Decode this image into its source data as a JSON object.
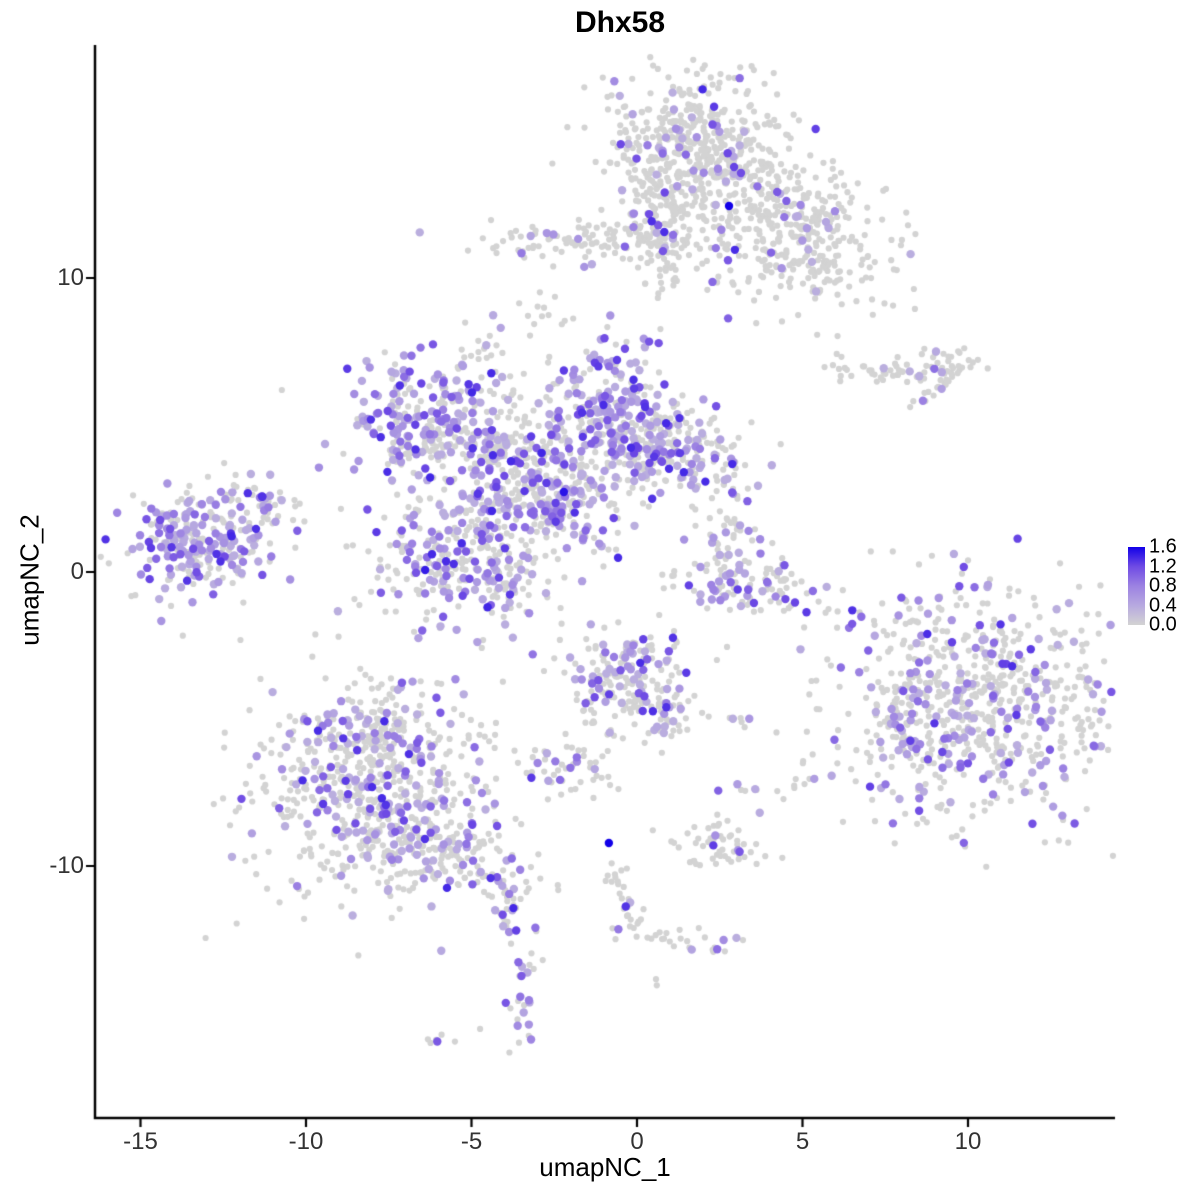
{
  "title": "Dhx58",
  "chart_data": {
    "type": "scatter",
    "title": "Dhx58",
    "xlabel": "umapNC_1",
    "ylabel": "umapNC_2",
    "x_ticks": [
      "-15",
      "-10",
      "-5",
      "0",
      "5",
      "10"
    ],
    "x_tick_values": [
      -15,
      -10,
      -5,
      0,
      5,
      10
    ],
    "y_ticks": [
      "10",
      "0",
      "-10"
    ],
    "y_tick_values": [
      10,
      0,
      -10
    ],
    "xlim": [
      -16.4,
      14.4
    ],
    "ylim": [
      -18.6,
      17.9
    ],
    "grid": false,
    "legend": {
      "position": "right",
      "labels": [
        "1.6",
        "1.2",
        "0.8",
        "0.4",
        "0.0"
      ],
      "values": [
        1.6,
        1.2,
        0.8,
        0.4,
        0.0
      ],
      "min": 0.0,
      "max": 1.6
    },
    "point_color_scale": [
      [
        0.0,
        "#D3D3D3"
      ],
      [
        0.4,
        "#B7A9E0"
      ],
      [
        0.8,
        "#9C82E2"
      ],
      [
        1.2,
        "#6F4BE4"
      ],
      [
        1.6,
        "#1200E8"
      ]
    ],
    "background_point_color": "#D3D3D3",
    "clusters": [
      {
        "name": "top-cap",
        "cx": 1.75,
        "cy": 14.35,
        "sx": 1.45,
        "sy": 1.3,
        "rot": 0,
        "n": 520,
        "frac": 0.08
      },
      {
        "name": "top-stem",
        "cx": 0.76,
        "cy": 11.63,
        "sx": 0.5,
        "sy": 1.1,
        "rot": 0,
        "n": 110,
        "frac": 0.08
      },
      {
        "name": "top-right-wing",
        "cx": 4.77,
        "cy": 11.29,
        "sx": 1.6,
        "sy": 1.25,
        "rot": -25,
        "n": 360,
        "frac": 0.08
      },
      {
        "name": "top-left-arm",
        "cx": -1.72,
        "cy": 11.29,
        "sx": 1.7,
        "sy": 0.35,
        "rot": 0,
        "n": 100,
        "frac": 0.12
      },
      {
        "name": "blob-upper-mid",
        "cx": -2.78,
        "cy": 8.81,
        "sx": 0.3,
        "sy": 0.35,
        "rot": 0,
        "n": 13,
        "frac": 0.3
      },
      {
        "name": "stream-a",
        "cx": -4.44,
        "cy": 7.31,
        "sx": 0.36,
        "sy": 0.55,
        "rot": 0,
        "n": 18,
        "frac": 0.3
      },
      {
        "name": "stream-b",
        "cx": -4.11,
        "cy": 6.19,
        "sx": 0.22,
        "sy": 0.55,
        "rot": 0,
        "n": 13,
        "frac": 0.15
      },
      {
        "name": "central-upper-left-wing",
        "cx": -6.4,
        "cy": 5.44,
        "sx": 1.3,
        "sy": 1.0,
        "rot": 25,
        "n": 210,
        "frac": 0.45
      },
      {
        "name": "central-left-arm",
        "cx": -4.65,
        "cy": 4.25,
        "sx": 1.15,
        "sy": 0.58,
        "rot": -15,
        "n": 120,
        "frac": 0.3
      },
      {
        "name": "central-bridge",
        "cx": -3.23,
        "cy": 3.47,
        "sx": 0.88,
        "sy": 0.75,
        "rot": 0,
        "n": 100,
        "frac": 0.35
      },
      {
        "name": "central-top-right-lobe",
        "cx": -0.82,
        "cy": 5.17,
        "sx": 1.02,
        "sy": 1.38,
        "rot": 0,
        "n": 320,
        "frac": 0.5
      },
      {
        "name": "central-right-arm",
        "cx": 1.3,
        "cy": 4.15,
        "sx": 1.18,
        "sy": 0.82,
        "rot": -10,
        "n": 190,
        "frac": 0.35
      },
      {
        "name": "central-neck",
        "cx": -2.84,
        "cy": 2.45,
        "sx": 0.74,
        "sy": 0.65,
        "rot": 0,
        "n": 85,
        "frac": 0.35
      },
      {
        "name": "central-lower-left-lobe",
        "cx": -5.05,
        "cy": 0.58,
        "sx": 1.45,
        "sy": 1.3,
        "rot": 0,
        "n": 370,
        "frac": 0.4
      },
      {
        "name": "central-diag-streak",
        "cx": -2.11,
        "cy": 1.7,
        "sx": 0.72,
        "sy": 0.28,
        "rot": -40,
        "n": 38,
        "frac": 0.5
      },
      {
        "name": "left-cluster",
        "cx": -13.05,
        "cy": 1.09,
        "sx": 1.22,
        "sy": 0.92,
        "rot": 0,
        "n": 270,
        "frac": 0.52
      },
      {
        "name": "left-cluster-tip",
        "cx": -11.33,
        "cy": 2.35,
        "sx": 0.5,
        "sy": 0.25,
        "rot": -20,
        "n": 28,
        "frac": 0.4
      },
      {
        "name": "right-chain",
        "cx": 7.49,
        "cy": 6.87,
        "sx": 0.82,
        "sy": 0.22,
        "rot": 0,
        "n": 38,
        "frac": 0.06
      },
      {
        "name": "right-chain-blob",
        "cx": 9.31,
        "cy": 7.07,
        "sx": 0.52,
        "sy": 0.35,
        "rot": 0,
        "n": 42,
        "frac": 0.04
      },
      {
        "name": "right-diag",
        "cx": 8.94,
        "cy": 6.09,
        "sx": 0.36,
        "sy": 0.16,
        "rot": 25,
        "n": 11,
        "frac": 0.15
      },
      {
        "name": "crescent-upper",
        "cx": 2.87,
        "cy": 1.09,
        "sx": 0.5,
        "sy": 0.75,
        "rot": 0,
        "n": 50,
        "frac": 0.3
      },
      {
        "name": "crescent",
        "cx": 3.26,
        "cy": -0.65,
        "sx": 1.3,
        "sy": 0.4,
        "rot": -8,
        "n": 85,
        "frac": 0.3
      },
      {
        "name": "crescent-hook",
        "cx": 4.41,
        "cy": 0.03,
        "sx": 0.28,
        "sy": 0.3,
        "rot": 0,
        "n": 14,
        "frac": 0.2
      },
      {
        "name": "right-big",
        "cx": 10.51,
        "cy": -4.35,
        "sx": 2.2,
        "sy": 2.1,
        "rot": 0,
        "n": 680,
        "frac": 0.26
      },
      {
        "name": "right-big-protrusion",
        "cx": 7.95,
        "cy": -5.2,
        "sx": 0.42,
        "sy": 0.98,
        "rot": 0,
        "n": 42,
        "frac": 0.5
      },
      {
        "name": "right-big-sparse",
        "cx": 8.55,
        "cy": -2.48,
        "sx": 0.72,
        "sy": 0.82,
        "rot": 0,
        "n": 15,
        "frac": 0.05
      },
      {
        "name": "bottom-left-main",
        "cx": -7.92,
        "cy": -7.76,
        "sx": 1.9,
        "sy": 1.8,
        "rot": 0,
        "n": 580,
        "frac": 0.24
      },
      {
        "name": "bottom-left-top",
        "cx": -8.31,
        "cy": -5.48,
        "sx": 1.0,
        "sy": 0.65,
        "rot": 0,
        "n": 120,
        "frac": 0.22
      },
      {
        "name": "bottom-left-tail",
        "cx": -5.5,
        "cy": -9.63,
        "sx": 1.3,
        "sy": 0.58,
        "rot": -25,
        "n": 120,
        "frac": 0.2
      },
      {
        "name": "tail-tip-dots",
        "cx": -3.99,
        "cy": -11.26,
        "sx": 0.28,
        "sy": 0.38,
        "rot": 0,
        "n": 9,
        "frac": 0.35
      },
      {
        "name": "tail-below-dots",
        "cx": -3.87,
        "cy": -12.11,
        "sx": 0.16,
        "sy": 0.32,
        "rot": 0,
        "n": 5,
        "frac": 0.3
      },
      {
        "name": "pear-main",
        "cx": -0.36,
        "cy": -3.5,
        "sx": 0.92,
        "sy": 0.9,
        "rot": 0,
        "n": 165,
        "frac": 0.38
      },
      {
        "name": "pear-neck",
        "cx": 0.79,
        "cy": -4.8,
        "sx": 0.42,
        "sy": 0.58,
        "rot": 0,
        "n": 42,
        "frac": 0.3
      },
      {
        "name": "pear-tail",
        "cx": -1.21,
        "cy": -5.41,
        "sx": 0.22,
        "sy": 0.8,
        "rot": 15,
        "n": 12,
        "frac": 0.15
      },
      {
        "name": "small-left-blob",
        "cx": -2.33,
        "cy": -6.73,
        "sx": 0.72,
        "sy": 0.45,
        "rot": 0,
        "n": 42,
        "frac": 0.25
      },
      {
        "name": "small-pair-right",
        "cx": 2.81,
        "cy": -5.0,
        "sx": 0.33,
        "sy": 0.16,
        "rot": 0,
        "n": 6,
        "frac": 0.2
      },
      {
        "name": "tiny-pair",
        "cx": -1.12,
        "cy": -7.01,
        "sx": 0.18,
        "sy": 0.09,
        "rot": 0,
        "n": 3,
        "frac": 0.0
      },
      {
        "name": "blob-low-mid",
        "cx": 2.36,
        "cy": -9.29,
        "sx": 0.72,
        "sy": 0.4,
        "rot": 0,
        "n": 55,
        "frac": 0.12
      },
      {
        "name": "streak-low",
        "cx": -0.48,
        "cy": -10.82,
        "sx": 0.19,
        "sy": 0.8,
        "rot": 8,
        "n": 18,
        "frac": 0.12
      },
      {
        "name": "streak-low-blob",
        "cx": -0.12,
        "cy": -12.01,
        "sx": 0.33,
        "sy": 0.25,
        "rot": 0,
        "n": 14,
        "frac": 0.1
      },
      {
        "name": "arm-low",
        "cx": 0.94,
        "cy": -12.45,
        "sx": 0.56,
        "sy": 0.22,
        "rot": -12,
        "n": 11,
        "frac": 0.05
      },
      {
        "name": "arm-end-blob",
        "cx": 2.27,
        "cy": -12.69,
        "sx": 0.4,
        "sy": 0.28,
        "rot": 0,
        "n": 13,
        "frac": 0.2
      },
      {
        "name": "iso-pair",
        "cx": 0.57,
        "cy": -13.84,
        "sx": 0.1,
        "sy": 0.1,
        "rot": 0,
        "n": 2,
        "frac": 0.5
      },
      {
        "name": "pair-small",
        "cx": 3.35,
        "cy": -7.52,
        "sx": 0.19,
        "sy": 0.22,
        "rot": 0,
        "n": 6,
        "frac": 0.25
      },
      {
        "name": "triangle-small",
        "cx": 4.92,
        "cy": -7.24,
        "sx": 0.33,
        "sy": 0.34,
        "rot": 0,
        "n": 10,
        "frac": 0.2
      },
      {
        "name": "vertical-blob",
        "cx": -3.41,
        "cy": -14.29,
        "sx": 0.3,
        "sy": 0.95,
        "rot": 0,
        "n": 26,
        "frac": 0.45
      },
      {
        "name": "column-dots",
        "cx": -3.93,
        "cy": -11.67,
        "sx": 0.19,
        "sy": 0.45,
        "rot": 0,
        "n": 8,
        "frac": 0.4
      },
      {
        "name": "bottom-streak",
        "cx": -5.92,
        "cy": -16.02,
        "sx": 0.25,
        "sy": 0.16,
        "rot": 20,
        "n": 6,
        "frac": 0.2
      }
    ],
    "singleton_gray_points": [
      [
        -10.73,
        6.19
      ],
      [
        -4.74,
        -15.54
      ],
      [
        2.63,
        3.13
      ],
      [
        8.1,
        -0.95
      ],
      [
        -2.33,
        -2.31
      ],
      [
        2.72,
        -2.55
      ]
    ],
    "high_expression_points": [
      {
        "x": 2.78,
        "y": 12.45,
        "value": 1.6
      },
      {
        "x": -2.21,
        "y": 2.72,
        "value": 1.5
      },
      {
        "x": -6.4,
        "y": 0.07,
        "value": 1.45
      },
      {
        "x": -0.85,
        "y": -9.22,
        "value": 1.6
      }
    ]
  }
}
